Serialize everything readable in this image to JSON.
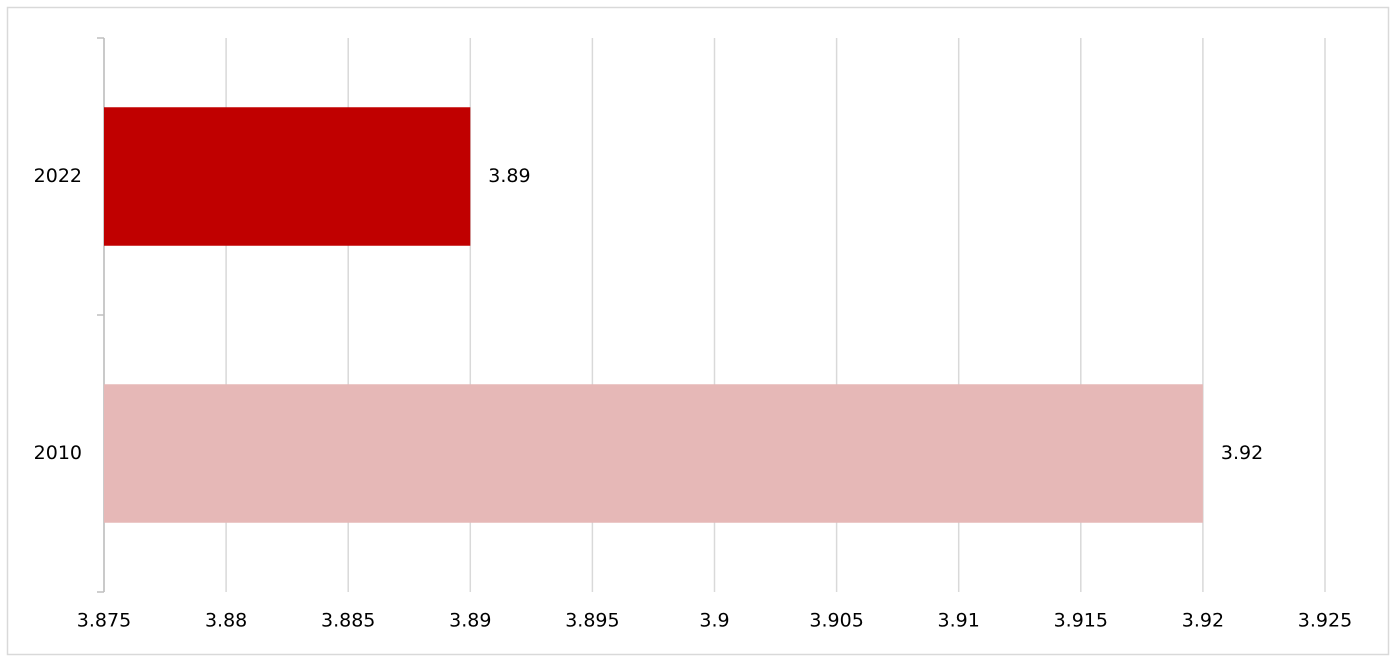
{
  "chart_data": {
    "type": "hbar",
    "categories": [
      "2022",
      "2010"
    ],
    "values": [
      3.89,
      3.92
    ],
    "colors": [
      "#c00000",
      "#e6b8b7"
    ],
    "xlim": [
      3.875,
      3.925
    ],
    "xticks": [
      3.875,
      3.88,
      3.885,
      3.89,
      3.895,
      3.9,
      3.905,
      3.91,
      3.915,
      3.92,
      3.925
    ],
    "grid": true
  }
}
